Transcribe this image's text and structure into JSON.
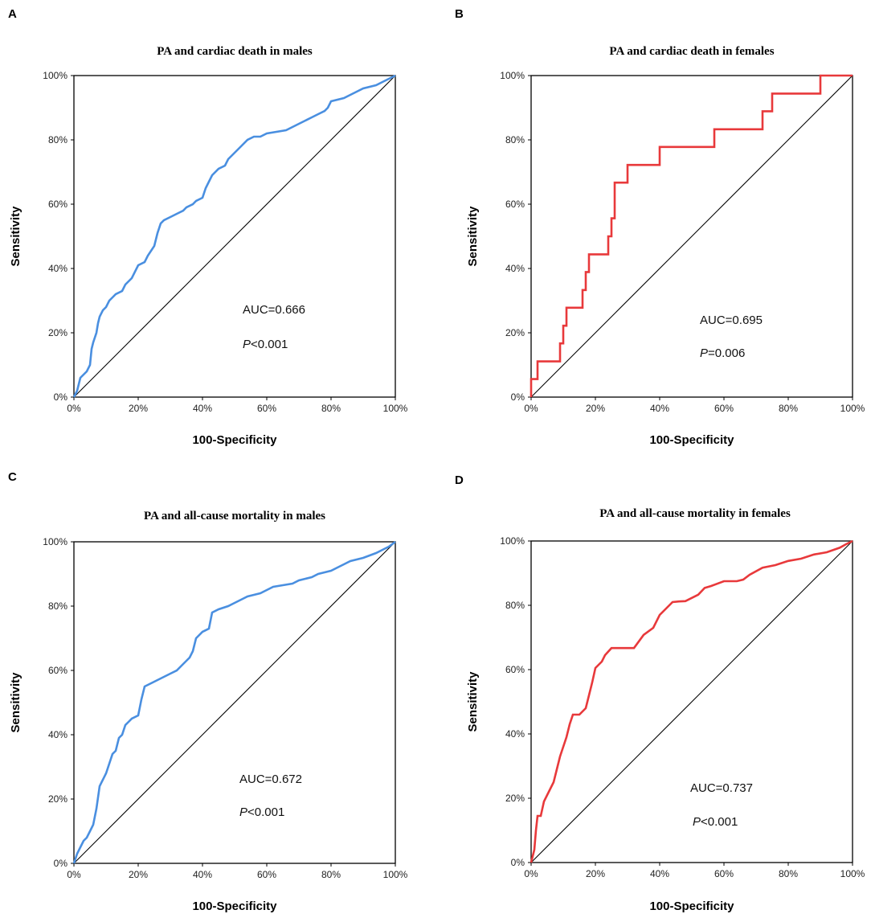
{
  "figure": "ROC curves",
  "chart_data": [
    {
      "panel": "A",
      "type": "line",
      "title": "PA and cardiac death in males",
      "xlabel": "100-Specificity",
      "ylabel": "Sensitivity",
      "xlim": [
        0,
        100
      ],
      "ylim": [
        0,
        100
      ],
      "xticks": [
        "0%",
        "20%",
        "40%",
        "60%",
        "80%",
        "100%"
      ],
      "yticks": [
        "0%",
        "20%",
        "40%",
        "60%",
        "80%",
        "100%"
      ],
      "color": "#4a8fe0",
      "auc_label": "AUC=0.666",
      "p_prefix": "P",
      "p_value": "<0.001",
      "series": [
        {
          "name": "ROC",
          "x": [
            0,
            1,
            2,
            4,
            5,
            5.5,
            6,
            7,
            7.5,
            8,
            9,
            10,
            11,
            12,
            13,
            15,
            16,
            18,
            20,
            22,
            23,
            25,
            26,
            27,
            28,
            30,
            32,
            34,
            35,
            37,
            38,
            40,
            41,
            42,
            43,
            45,
            47,
            48,
            50,
            52,
            54,
            56,
            58,
            60,
            66,
            68,
            70,
            72,
            74,
            76,
            78,
            79,
            80,
            84,
            86,
            88,
            90,
            94,
            96,
            98,
            100
          ],
          "y": [
            0,
            2,
            6,
            8,
            10,
            15,
            17,
            20,
            23,
            25,
            27,
            28,
            30,
            31,
            32,
            33,
            35,
            37,
            41,
            42,
            44,
            47,
            51,
            54,
            55,
            56,
            57,
            58,
            59,
            60,
            61,
            62,
            65,
            67,
            69,
            71,
            72,
            74,
            76,
            78,
            80,
            81,
            81,
            82,
            83,
            84,
            85,
            86,
            87,
            88,
            89,
            90,
            92,
            93,
            94,
            95,
            96,
            97,
            98,
            99,
            100
          ]
        }
      ]
    },
    {
      "panel": "B",
      "type": "line",
      "title": "PA and cardiac death in females",
      "xlabel": "100-Specificity",
      "ylabel": "Sensitivity",
      "xlim": [
        0,
        100
      ],
      "ylim": [
        0,
        100
      ],
      "xticks": [
        "0%",
        "20%",
        "40%",
        "60%",
        "80%",
        "100%"
      ],
      "yticks": [
        "0%",
        "20%",
        "40%",
        "60%",
        "80%",
        "100%"
      ],
      "color": "#e8393b",
      "auc_label": "AUC=0.695",
      "p_prefix": "P",
      "p_value": "=0.006",
      "series": [
        {
          "name": "ROC",
          "x": [
            0,
            0,
            2,
            2,
            9,
            9,
            10,
            10,
            11,
            11,
            16,
            16,
            17,
            17,
            18,
            18,
            24,
            24,
            25,
            25,
            26,
            26,
            30,
            30,
            40,
            40,
            57,
            57,
            72,
            72,
            75,
            75,
            90,
            90,
            100
          ],
          "y": [
            0,
            5.6,
            5.6,
            11.1,
            11.1,
            16.7,
            16.7,
            22.2,
            22.2,
            27.8,
            27.8,
            33.3,
            33.3,
            38.9,
            38.9,
            44.4,
            44.4,
            50,
            50,
            55.6,
            55.6,
            66.7,
            66.7,
            72.2,
            72.2,
            77.8,
            77.8,
            83.3,
            83.3,
            88.9,
            88.9,
            94.4,
            94.4,
            100,
            100
          ]
        }
      ]
    },
    {
      "panel": "C",
      "type": "line",
      "title": "PA and all-cause mortality in males",
      "xlabel": "100-Specificity",
      "ylabel": "Sensitivity",
      "xlim": [
        0,
        100
      ],
      "ylim": [
        0,
        100
      ],
      "xticks": [
        "0%",
        "20%",
        "40%",
        "60%",
        "80%",
        "100%"
      ],
      "yticks": [
        "0%",
        "20%",
        "40%",
        "60%",
        "80%",
        "100%"
      ],
      "color": "#4a8fe0",
      "auc_label": "AUC=0.672",
      "p_prefix": "P",
      "p_value": "<0.001",
      "series": [
        {
          "name": "ROC",
          "x": [
            0,
            1,
            2,
            3,
            4,
            5,
            6,
            7,
            8,
            9,
            10,
            11,
            12,
            13,
            14,
            15,
            16,
            17,
            18,
            20,
            21,
            22,
            24,
            26,
            28,
            30,
            32,
            34,
            35,
            36,
            37,
            38,
            40,
            42,
            43,
            45,
            48,
            50,
            52,
            54,
            56,
            58,
            60,
            62,
            65,
            68,
            70,
            72,
            74,
            76,
            78,
            80,
            82,
            84,
            86,
            90,
            94,
            96,
            98,
            100
          ],
          "y": [
            0,
            3,
            5,
            7,
            8,
            10,
            12,
            17,
            24,
            26,
            28,
            31,
            34,
            35,
            39,
            40,
            43,
            44,
            45,
            46,
            51,
            55,
            56,
            57,
            58,
            59,
            60,
            62,
            63,
            64,
            66,
            70,
            72,
            73,
            78,
            79,
            80,
            81,
            82,
            83,
            83.5,
            84,
            85,
            86,
            86.5,
            87,
            88,
            88.5,
            89,
            90,
            90.5,
            91,
            92,
            93,
            94,
            95,
            96.5,
            97.5,
            98.5,
            100
          ]
        }
      ]
    },
    {
      "panel": "D",
      "type": "line",
      "title": "PA and all-cause mortality in females",
      "xlabel": "100-Specificity",
      "ylabel": "Sensitivity",
      "xlim": [
        0,
        100
      ],
      "ylim": [
        0,
        100
      ],
      "xticks": [
        "0%",
        "20%",
        "40%",
        "60%",
        "80%",
        "100%"
      ],
      "yticks": [
        "0%",
        "20%",
        "40%",
        "60%",
        "80%",
        "100%"
      ],
      "color": "#e8393b",
      "auc_label": "AUC=0.737",
      "p_prefix": "P",
      "p_value": "<0.001",
      "series": [
        {
          "name": "ROC",
          "x": [
            0,
            0.5,
            1,
            1.5,
            2,
            3,
            4,
            5,
            6,
            7,
            8,
            9,
            10,
            11,
            12,
            13,
            15,
            17,
            18,
            19,
            20,
            22,
            23,
            25,
            28,
            32,
            35,
            38,
            40,
            42,
            44,
            46,
            48,
            52,
            54,
            56,
            60,
            64,
            66,
            68,
            72,
            76,
            80,
            84,
            88,
            92,
            96,
            98,
            100
          ],
          "y": [
            0,
            2,
            4,
            10,
            14.5,
            14.5,
            19,
            21,
            23,
            25,
            29,
            33,
            36,
            39,
            43,
            46,
            46,
            48,
            52,
            56,
            60.5,
            62.5,
            64.5,
            66.7,
            66.7,
            66.7,
            70.8,
            73,
            77,
            79,
            81,
            81.2,
            81.3,
            83.3,
            85.4,
            86,
            87.5,
            87.5,
            88,
            89.5,
            91.7,
            92.5,
            93.8,
            94.5,
            95.8,
            96.5,
            97.9,
            99,
            100
          ]
        }
      ]
    }
  ]
}
